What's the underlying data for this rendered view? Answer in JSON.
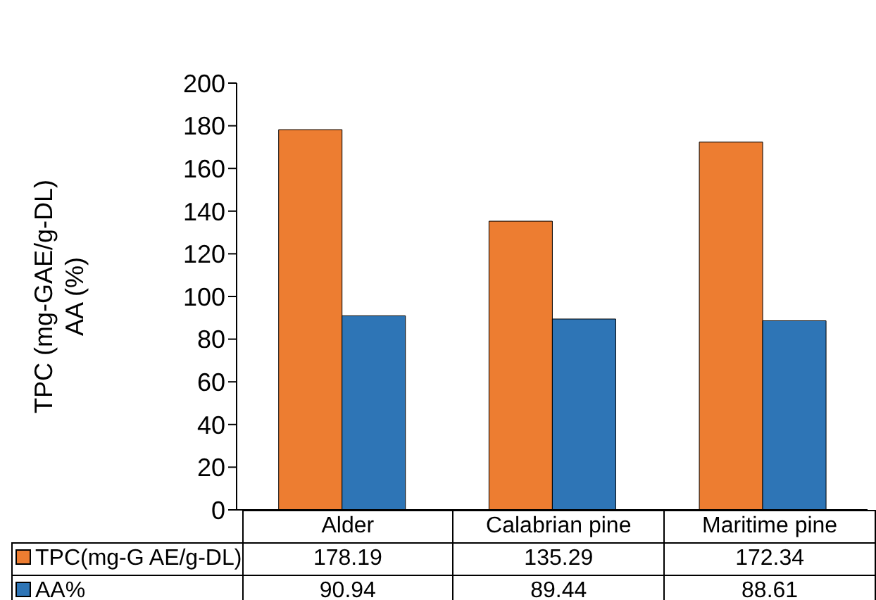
{
  "chart_data": {
    "type": "bar",
    "ylabel": "TPC (mg-GAE/g-DL)\nAA (%)",
    "categories": [
      "Alder",
      "Calabrian pine",
      "Maritime pine"
    ],
    "series": [
      {
        "name": "TPC(mg-G AE/g-DL)",
        "color": "#ed7d31",
        "values": [
          178.19,
          135.29,
          172.34
        ]
      },
      {
        "name": "AA%",
        "color": "#2e75b6",
        "values": [
          90.94,
          89.44,
          88.61
        ]
      }
    ],
    "ylim": [
      0,
      200
    ],
    "yticks": [
      0,
      20,
      40,
      60,
      80,
      100,
      120,
      140,
      160,
      180,
      200
    ],
    "grid": false,
    "legend": "bottom",
    "data_labels": true
  }
}
